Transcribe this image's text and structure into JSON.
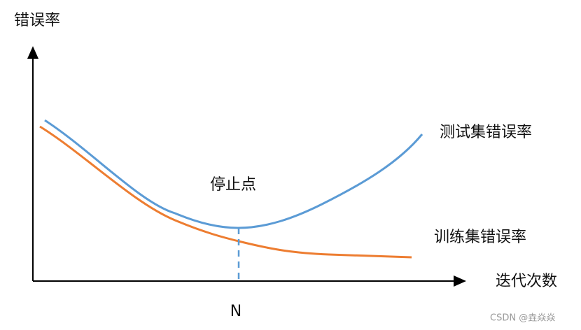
{
  "axes": {
    "y_label": "错误率",
    "x_label": "迭代次数"
  },
  "curves": [
    {
      "label": "测试集错误率"
    },
    {
      "label": "训练集错误率"
    }
  ],
  "stop_point": {
    "label": "停止点",
    "x_label": "N"
  },
  "watermark": "CSDN @垚焱焱"
}
